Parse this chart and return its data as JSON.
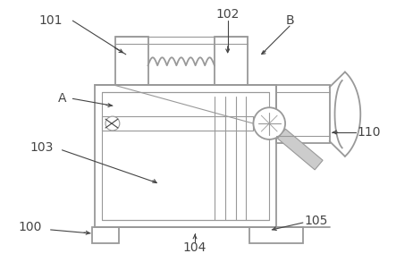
{
  "background_color": "#ffffff",
  "lc": "#999999",
  "dk": "#444444",
  "figsize": [
    4.43,
    2.93
  ],
  "dpi": 100,
  "lw_main": 1.3,
  "lw_thin": 0.8,
  "label_fs": 10
}
